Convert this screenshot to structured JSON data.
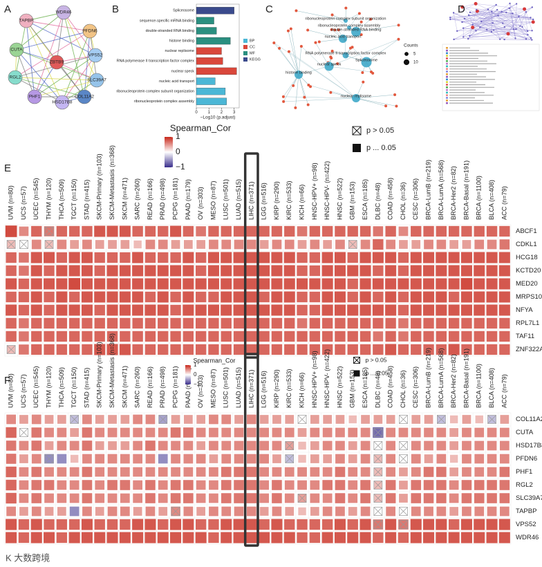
{
  "panel_labels": [
    "A",
    "B",
    "C",
    "D",
    "E",
    "F"
  ],
  "network_a": {
    "nodes": [
      "TAPBP",
      "WDR46",
      "PFDN6",
      "CUTA",
      "VPS52",
      "ZBTB9",
      "RGL2",
      "SLC39A7",
      "COL11A2",
      "PHF1",
      "HSD17B8"
    ]
  },
  "network_c": {
    "terms": [
      "ribonucleoprotein complex subunit organization",
      "ribonucleoprotein complex assembly",
      "double-stranded RNA binding",
      "nucleic acid transport",
      "RNA polymerase II transcription factor complex",
      "Spliceosome",
      "nuclear speck",
      "histone binding",
      "nuclear replisome"
    ],
    "size_legend": {
      "title": "Counts",
      "values": [
        5,
        10
      ]
    }
  },
  "watermark": "K 大数跨境",
  "chart_data": [
    {
      "type": "bar",
      "orientation": "horizontal",
      "categories": [
        "Spliceosome",
        "sequence-specific mRNA binding",
        "double-stranded RNA binding",
        "histone binding",
        "nuclear replisome",
        "RNA polymerase II transcription factor complex",
        "nuclear speck",
        "nucleic acid transport",
        "ribonucleoprotein complex subunit organization",
        "ribonucleoprotein complex assembly"
      ],
      "values": [
        3.0,
        1.4,
        1.6,
        2.7,
        2.0,
        2.1,
        3.2,
        1.5,
        2.3,
        2.4
      ],
      "groups": [
        "KEGG",
        "MF",
        "MF",
        "MF",
        "CC",
        "CC",
        "CC",
        "BP",
        "BP",
        "BP"
      ],
      "series": [
        {
          "name": "BP",
          "color": "#4bb7d6"
        },
        {
          "name": "CC",
          "color": "#d9473b"
        },
        {
          "name": "MF",
          "color": "#2a8f80"
        },
        {
          "name": "KEGG",
          "color": "#3a4a8c"
        }
      ],
      "x_label": "−Log10 (p.adjust)",
      "xlim": [
        0,
        3.4
      ],
      "xticks": [
        0,
        1,
        2,
        3
      ]
    },
    {
      "type": "heatmap",
      "columns": [
        "UVM (n=80)",
        "UCS (n=57)",
        "UCEC (n=545)",
        "THYM (n=120)",
        "THCA (n=509)",
        "TGCT (n=150)",
        "STAD (n=415)",
        "SKCM-Primary (n=103)",
        "SKCM-Metastasis (n=368)",
        "SKCM (n=471)",
        "SARC (n=260)",
        "READ (n=166)",
        "PRAD (n=498)",
        "PCPG (n=181)",
        "PAAD (n=179)",
        "OV (n=303)",
        "MESO (n=87)",
        "LUSC (n=501)",
        "LUAD (n=515)",
        "LIHC (n=371)",
        "LGG (n=516)",
        "KIRP (n=290)",
        "KIRC (n=533)",
        "KICH (n=66)",
        "HNSC-HPV+ (n=98)",
        "HNSC-HPV- (n=422)",
        "HNSC (n=522)",
        "GBM (n=153)",
        "ESCA (n=185)",
        "DLBC (n=48)",
        "COAD (n=458)",
        "CHOL (n=36)",
        "CESC (n=306)",
        "BRCA-LumB (n=219)",
        "BRCA-LumA (n=568)",
        "BRCA-Her2 (n=82)",
        "BRCA-Basal (n=191)",
        "BRCA (n=1100)",
        "BLCA (n=408)",
        "ACC (n=79)"
      ],
      "rows": [
        "ABCF1",
        "CDKL1",
        "HCG18",
        "KCTD20",
        "MED20",
        "MRPS10",
        "NFYA",
        "RPL7L1",
        "TAF11",
        "ZNF322A"
      ],
      "values": [
        [
          0.7,
          0.3,
          0.5,
          0.4,
          0.5,
          0.5,
          0.5,
          0.6,
          0.6,
          0.6,
          0.5,
          0.5,
          0.5,
          0.6,
          0.5,
          0.4,
          0.5,
          0.5,
          0.5,
          0.5,
          0.5,
          0.5,
          0.5,
          0.4,
          0.5,
          0.5,
          0.5,
          0.5,
          0.5,
          0.4,
          0.5,
          0.3,
          0.5,
          0.5,
          0.5,
          0.5,
          0.5,
          0.5,
          0.5,
          0.5
        ],
        [
          0.1,
          0.0,
          0.3,
          0.1,
          0.3,
          0.2,
          0.3,
          0.2,
          0.2,
          0.2,
          0.1,
          0.3,
          0.3,
          0.2,
          0.2,
          0.2,
          0.3,
          0.3,
          0.3,
          0.3,
          0.2,
          0.3,
          0.3,
          0.2,
          0.3,
          0.2,
          0.3,
          0.1,
          0.3,
          0.5,
          0.3,
          0.2,
          0.2,
          0.3,
          0.3,
          0.2,
          0.2,
          0.3,
          0.3,
          0.4
        ],
        [
          0.5,
          0.4,
          0.6,
          0.6,
          0.5,
          0.6,
          0.6,
          0.5,
          0.5,
          0.5,
          0.6,
          0.5,
          0.5,
          0.5,
          0.6,
          0.5,
          0.6,
          0.6,
          0.6,
          0.6,
          0.6,
          0.6,
          0.6,
          0.5,
          0.5,
          0.6,
          0.6,
          0.5,
          0.6,
          0.6,
          0.6,
          0.5,
          0.6,
          0.6,
          0.6,
          0.6,
          0.6,
          0.6,
          0.6,
          0.6
        ],
        [
          0.5,
          0.4,
          0.6,
          0.5,
          0.6,
          0.6,
          0.6,
          0.5,
          0.6,
          0.6,
          0.6,
          0.6,
          0.6,
          0.6,
          0.6,
          0.5,
          0.6,
          0.6,
          0.6,
          0.6,
          0.6,
          0.6,
          0.6,
          0.5,
          0.5,
          0.6,
          0.6,
          0.6,
          0.6,
          0.5,
          0.6,
          0.5,
          0.6,
          0.6,
          0.6,
          0.6,
          0.6,
          0.6,
          0.6,
          0.6
        ],
        [
          0.6,
          0.5,
          0.6,
          0.6,
          0.6,
          0.7,
          0.6,
          0.6,
          0.6,
          0.6,
          0.6,
          0.6,
          0.6,
          0.6,
          0.6,
          0.6,
          0.6,
          0.6,
          0.6,
          0.6,
          0.6,
          0.6,
          0.6,
          0.6,
          0.6,
          0.6,
          0.6,
          0.5,
          0.6,
          0.6,
          0.6,
          0.6,
          0.6,
          0.6,
          0.6,
          0.6,
          0.7,
          0.6,
          0.6,
          0.6
        ],
        [
          0.5,
          0.5,
          0.6,
          0.5,
          0.6,
          0.5,
          0.6,
          0.6,
          0.6,
          0.6,
          0.6,
          0.5,
          0.6,
          0.5,
          0.6,
          0.5,
          0.5,
          0.6,
          0.6,
          0.6,
          0.5,
          0.6,
          0.6,
          0.5,
          0.5,
          0.6,
          0.6,
          0.5,
          0.6,
          0.5,
          0.6,
          0.5,
          0.6,
          0.6,
          0.6,
          0.5,
          0.6,
          0.6,
          0.6,
          0.6
        ],
        [
          0.6,
          0.5,
          0.6,
          0.5,
          0.6,
          0.6,
          0.6,
          0.5,
          0.6,
          0.6,
          0.6,
          0.6,
          0.6,
          0.5,
          0.6,
          0.6,
          0.6,
          0.6,
          0.6,
          0.6,
          0.6,
          0.6,
          0.6,
          0.5,
          0.5,
          0.6,
          0.6,
          0.6,
          0.6,
          0.6,
          0.6,
          0.5,
          0.6,
          0.6,
          0.6,
          0.6,
          0.6,
          0.6,
          0.6,
          0.6
        ],
        [
          0.5,
          0.4,
          0.5,
          0.5,
          0.5,
          0.5,
          0.5,
          0.5,
          0.5,
          0.5,
          0.5,
          0.5,
          0.5,
          0.5,
          0.5,
          0.5,
          0.5,
          0.5,
          0.5,
          0.5,
          0.5,
          0.5,
          0.5,
          0.4,
          0.5,
          0.5,
          0.5,
          0.5,
          0.5,
          0.5,
          0.5,
          0.4,
          0.5,
          0.5,
          0.5,
          0.5,
          0.5,
          0.5,
          0.5,
          0.5
        ],
        [
          0.5,
          0.4,
          0.5,
          0.5,
          0.5,
          0.5,
          0.5,
          0.5,
          0.5,
          0.5,
          0.5,
          0.5,
          0.5,
          0.5,
          0.5,
          0.5,
          0.5,
          0.5,
          0.5,
          0.5,
          0.5,
          0.5,
          0.5,
          0.5,
          0.5,
          0.5,
          0.5,
          0.5,
          0.5,
          0.4,
          0.5,
          0.4,
          0.5,
          0.5,
          0.5,
          0.5,
          0.5,
          0.5,
          0.5,
          0.5
        ],
        [
          0.1,
          0.4,
          0.5,
          0.5,
          0.5,
          0.5,
          0.5,
          0.6,
          0.6,
          0.6,
          0.5,
          0.5,
          0.5,
          0.5,
          0.5,
          0.5,
          0.5,
          0.5,
          0.5,
          0.5,
          0.5,
          0.5,
          0.5,
          0.5,
          0.5,
          0.5,
          0.5,
          0.5,
          0.5,
          0.5,
          0.6,
          0.5,
          0.5,
          0.5,
          0.5,
          0.6,
          0.5,
          0.5,
          0.5,
          0.5
        ]
      ],
      "insignificant": [
        [
          0,
          3
        ],
        [
          1,
          0
        ],
        [
          1,
          1
        ],
        [
          1,
          3
        ],
        [
          1,
          27
        ],
        [
          9,
          0
        ]
      ],
      "highlight": 19,
      "colorbar": {
        "title": "Spearman_Cor",
        "lim": [
          -1,
          1
        ],
        "ticks": [
          1,
          0,
          {
            "value": -1,
            "label": "−1"
          }
        ]
      },
      "significance_legend": [
        "p > 0.05",
        "p ... 0.05"
      ]
    },
    {
      "type": "heatmap",
      "columns": [
        "UVM (n=80)",
        "UCS (n=57)",
        "UCEC (n=545)",
        "THYM (n=120)",
        "THCA (n=509)",
        "TGCT (n=150)",
        "STAD (n=415)",
        "SKCM-Primary (n=103)",
        "SKCM-Metastasis (n=368)",
        "SKCM (n=471)",
        "SARC (n=260)",
        "READ (n=166)",
        "PRAD (n=498)",
        "PCPG (n=181)",
        "PAAD (n=179)",
        "OV (n=303)",
        "MESO (n=87)",
        "LUSC (n=501)",
        "LUAD (n=515)",
        "LIHC (n=371)",
        "LGG (n=516)",
        "KIRP (n=290)",
        "KIRC (n=533)",
        "KICH (n=66)",
        "HNSC-HPV+ (n=98)",
        "HNSC-HPV- (n=422)",
        "HNSC (n=522)",
        "GBM (n=153)",
        "ESCA (n=185)",
        "DLBC (n=48)",
        "COAD (n=458)",
        "CHOL (n=36)",
        "CESC (n=306)",
        "BRCA-LumB (n=219)",
        "BRCA-LumA (n=568)",
        "BRCA-Her2 (n=82)",
        "BRCA-Basal (n=191)",
        "BRCA (n=1100)",
        "BLCA (n=408)",
        "ACC (n=79)"
      ],
      "rows": [
        "COL11A2",
        "CUTA",
        "HSD17B8",
        "PFDN6",
        "PHF1",
        "RGL2",
        "SLC39A7",
        "TAPBP",
        "VPS52",
        "WDR46"
      ],
      "values": [
        [
          0.3,
          0.2,
          0.3,
          0.2,
          0.2,
          -0.1,
          0.3,
          0.2,
          0.2,
          0.2,
          0.3,
          0.3,
          -0.2,
          0.2,
          0.2,
          0.2,
          0.3,
          0.3,
          0.2,
          0.3,
          0.2,
          0.2,
          0.2,
          0.0,
          0.2,
          0.2,
          0.2,
          0.1,
          0.2,
          0.2,
          0.2,
          0.0,
          0.2,
          0.2,
          -0.1,
          0.1,
          0.2,
          0.1,
          -0.1,
          0.2
        ],
        [
          0.5,
          0.0,
          0.4,
          0.3,
          0.3,
          0.2,
          0.4,
          0.3,
          0.3,
          0.3,
          0.3,
          0.3,
          0.3,
          0.4,
          0.4,
          0.3,
          0.3,
          0.3,
          0.3,
          0.3,
          0.3,
          0.3,
          0.3,
          0.2,
          0.3,
          0.3,
          0.3,
          0.3,
          0.3,
          -0.5,
          0.3,
          0.3,
          0.3,
          0.3,
          0.3,
          0.2,
          0.3,
          0.3,
          0.3,
          0.3
        ],
        [
          0.4,
          0.3,
          0.4,
          0.2,
          0.3,
          0.3,
          0.4,
          0.2,
          0.2,
          0.2,
          0.3,
          0.4,
          0.3,
          0.3,
          0.3,
          0.2,
          0.3,
          0.3,
          0.3,
          0.3,
          0.3,
          0.3,
          0.2,
          0.1,
          0.2,
          0.3,
          0.3,
          0.2,
          0.3,
          0.0,
          0.3,
          0.0,
          0.3,
          0.3,
          0.3,
          0.2,
          0.3,
          0.3,
          0.3,
          0.3
        ],
        [
          0.4,
          0.2,
          0.3,
          -0.3,
          -0.3,
          0.1,
          0.3,
          0.3,
          0.3,
          0.3,
          0.3,
          0.3,
          -0.3,
          0.3,
          0.3,
          0.3,
          0.2,
          0.3,
          0.3,
          0.3,
          0.3,
          0.2,
          -0.1,
          0.1,
          0.2,
          0.2,
          0.3,
          0.2,
          0.3,
          0.1,
          0.3,
          0.0,
          0.3,
          0.2,
          0.3,
          0.1,
          0.3,
          0.3,
          0.3,
          0.3
        ],
        [
          0.5,
          0.3,
          0.4,
          0.3,
          0.3,
          0.3,
          0.4,
          0.3,
          0.3,
          0.3,
          0.3,
          0.3,
          0.3,
          0.3,
          0.3,
          0.3,
          0.3,
          0.4,
          0.4,
          0.4,
          0.3,
          0.3,
          0.3,
          0.3,
          0.3,
          0.3,
          0.4,
          0.3,
          0.3,
          0.1,
          0.3,
          0.2,
          0.3,
          0.4,
          0.4,
          0.2,
          0.3,
          0.3,
          0.3,
          0.4
        ],
        [
          0.5,
          0.3,
          0.4,
          0.4,
          0.3,
          0.3,
          0.4,
          0.3,
          0.4,
          0.4,
          0.3,
          0.4,
          0.3,
          0.4,
          0.4,
          0.3,
          0.3,
          0.4,
          0.4,
          0.4,
          0.3,
          0.4,
          0.3,
          0.3,
          0.3,
          0.4,
          0.4,
          0.3,
          0.4,
          0.1,
          0.4,
          0.2,
          0.4,
          0.4,
          0.4,
          0.3,
          0.4,
          0.4,
          0.4,
          0.4
        ],
        [
          0.5,
          0.3,
          0.4,
          0.3,
          0.3,
          0.3,
          0.4,
          0.3,
          0.3,
          0.3,
          0.3,
          0.4,
          0.3,
          0.4,
          0.4,
          0.3,
          0.3,
          0.4,
          0.4,
          0.4,
          0.3,
          0.4,
          0.3,
          0.2,
          0.3,
          0.3,
          0.4,
          0.3,
          0.4,
          0.1,
          0.4,
          0.2,
          0.4,
          0.4,
          0.4,
          0.3,
          0.4,
          0.4,
          0.4,
          0.4
        ],
        [
          0.3,
          0.2,
          0.3,
          0.2,
          0.2,
          -0.3,
          0.3,
          0.2,
          0.3,
          0.3,
          0.2,
          0.3,
          0.2,
          0.3,
          0.3,
          0.2,
          0.3,
          0.3,
          0.3,
          0.3,
          0.2,
          0.3,
          0.2,
          0.1,
          0.2,
          0.3,
          0.3,
          0.2,
          0.3,
          0.0,
          0.3,
          0.0,
          0.3,
          0.3,
          0.3,
          0.2,
          0.3,
          0.3,
          0.3,
          0.3
        ],
        [
          0.6,
          0.5,
          0.6,
          0.5,
          0.5,
          0.5,
          0.6,
          0.5,
          0.5,
          0.5,
          0.6,
          0.6,
          0.5,
          0.6,
          0.6,
          0.5,
          0.5,
          0.6,
          0.6,
          0.6,
          0.5,
          0.6,
          0.5,
          0.5,
          0.5,
          0.5,
          0.6,
          0.5,
          0.6,
          0.4,
          0.6,
          0.4,
          0.6,
          0.6,
          0.6,
          0.5,
          0.6,
          0.6,
          0.6,
          0.6
        ],
        [
          0.6,
          0.5,
          0.6,
          0.6,
          0.5,
          0.6,
          0.6,
          0.6,
          0.6,
          0.6,
          0.6,
          0.6,
          0.6,
          0.6,
          0.6,
          0.6,
          0.5,
          0.6,
          0.6,
          0.6,
          0.6,
          0.6,
          0.6,
          0.5,
          0.5,
          0.6,
          0.6,
          0.6,
          0.6,
          0.5,
          0.6,
          0.5,
          0.6,
          0.6,
          0.6,
          0.6,
          0.6,
          0.6,
          0.6,
          0.6
        ]
      ],
      "insignificant": [
        [
          0,
          5
        ],
        [
          0,
          12
        ],
        [
          0,
          23
        ],
        [
          0,
          31
        ],
        [
          0,
          34
        ],
        [
          0,
          38
        ],
        [
          1,
          1
        ],
        [
          1,
          29
        ],
        [
          2,
          22
        ],
        [
          2,
          29
        ],
        [
          2,
          31
        ],
        [
          3,
          3
        ],
        [
          3,
          22
        ],
        [
          3,
          29
        ],
        [
          3,
          31
        ],
        [
          4,
          29
        ],
        [
          5,
          29
        ],
        [
          6,
          23
        ],
        [
          6,
          29
        ],
        [
          7,
          13
        ],
        [
          7,
          29
        ],
        [
          7,
          31
        ],
        [
          8,
          29
        ],
        [
          8,
          31
        ]
      ],
      "highlight": 19,
      "colorbar": {
        "title": "Spearman_Cor",
        "lim": [
          -1,
          1
        ],
        "ticks": [
          1,
          0,
          {
            "value": -1,
            "label": "−1"
          }
        ]
      },
      "significance_legend": [
        "p > 0.05",
        "p ... 0.05"
      ]
    }
  ]
}
